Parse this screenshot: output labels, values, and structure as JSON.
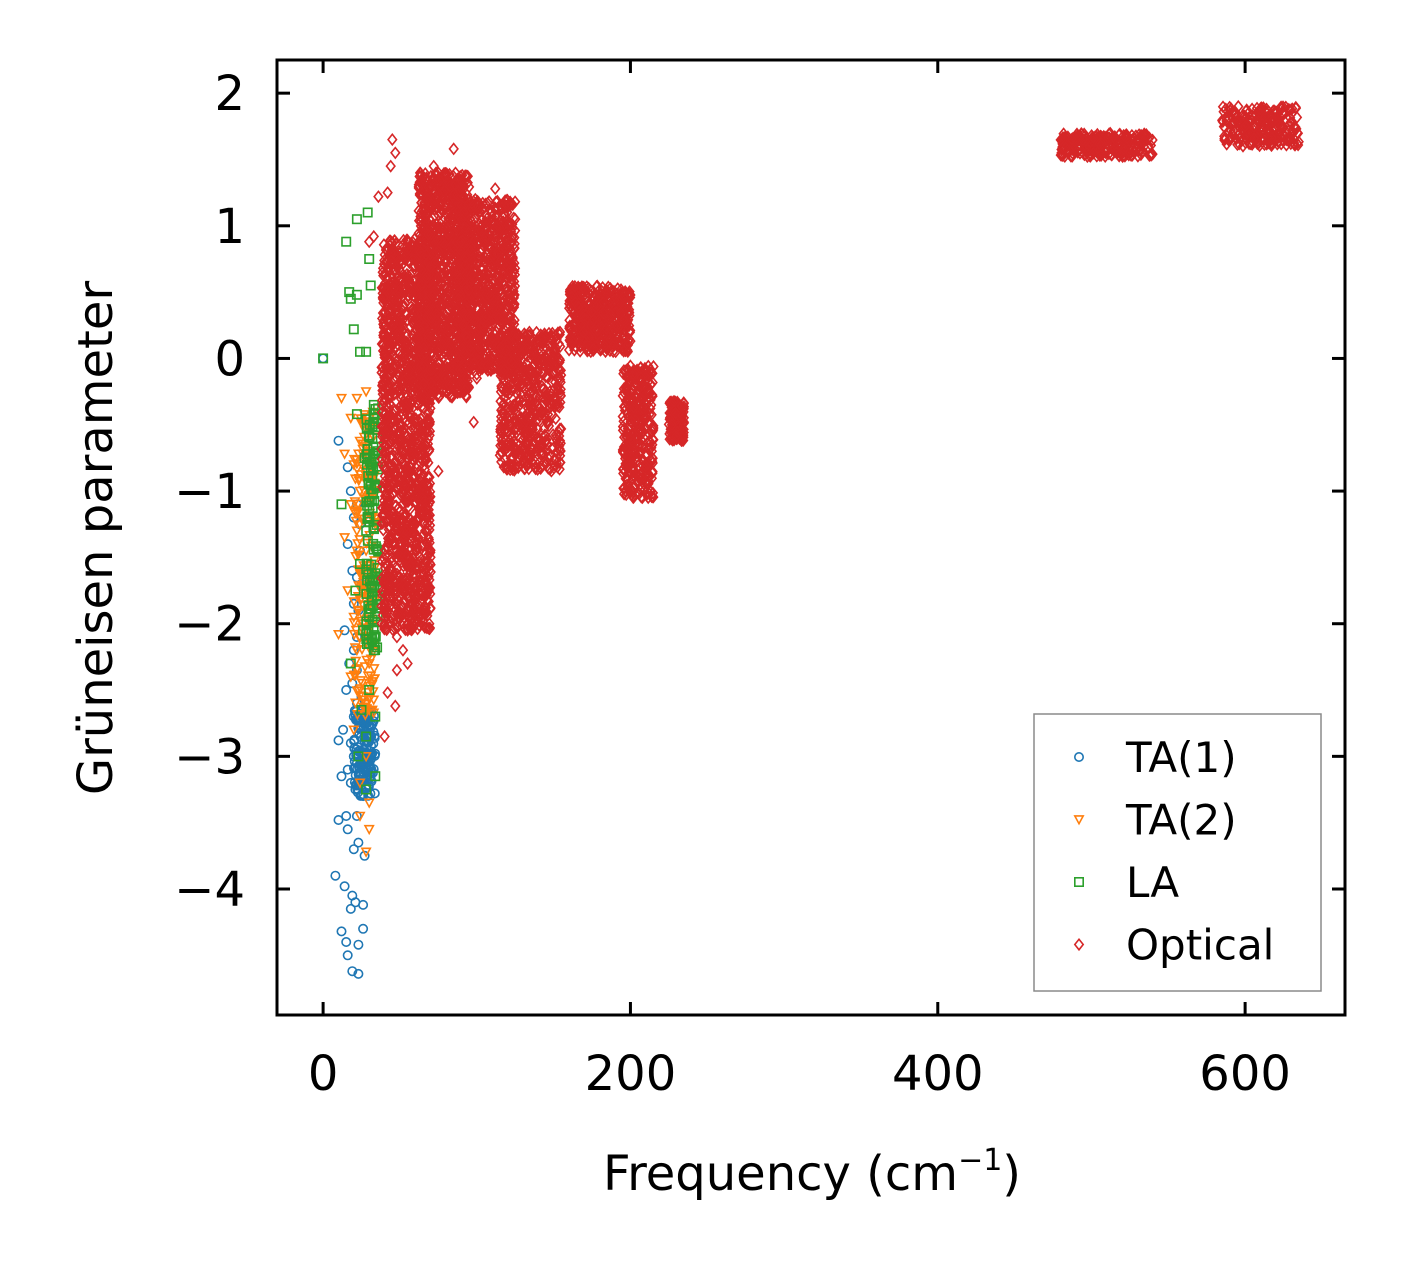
{
  "chart_data": {
    "type": "scatter",
    "title": "",
    "xlabel": "Frequency (cm",
    "xlabel_sup": "−1",
    "xlabel_tail": ")",
    "ylabel": "Grüneisen parameter",
    "xlim": [
      -30,
      665
    ],
    "ylim": [
      -4.95,
      2.25
    ],
    "xticks": [
      0,
      200,
      400,
      600
    ],
    "xtick_labels": [
      "0",
      "200",
      "400",
      "600"
    ],
    "yticks": [
      2,
      1,
      0,
      -1,
      -2,
      -3,
      -4
    ],
    "ytick_labels": [
      "2",
      "1",
      "0",
      "−1",
      "−2",
      "−3",
      "−4"
    ],
    "legend_position": "lower-right",
    "series": [
      {
        "name": "TA(1)",
        "marker": "circle",
        "color": "#1f77b4",
        "points": [
          [
            0,
            0
          ],
          [
            10,
            -0.62
          ],
          [
            16,
            -0.82
          ],
          [
            18,
            -1.0
          ],
          [
            22,
            -1.1
          ],
          [
            20,
            -1.2
          ],
          [
            24,
            -1.25
          ],
          [
            16,
            -1.4
          ],
          [
            24,
            -1.45
          ],
          [
            19,
            -1.6
          ],
          [
            22,
            -1.65
          ],
          [
            25,
            -1.7
          ],
          [
            20,
            -1.85
          ],
          [
            23,
            -1.9
          ],
          [
            14,
            -2.05
          ],
          [
            22,
            -2.1
          ],
          [
            20,
            -2.2
          ],
          [
            17,
            -2.3
          ],
          [
            22,
            -2.35
          ],
          [
            19,
            -2.45
          ],
          [
            15,
            -2.5
          ],
          [
            25,
            -2.55
          ],
          [
            22,
            -2.6
          ],
          [
            20,
            -2.7
          ],
          [
            24,
            -2.72
          ],
          [
            13,
            -2.8
          ],
          [
            10,
            -2.88
          ],
          [
            18,
            -2.9
          ],
          [
            26,
            -2.95
          ],
          [
            20,
            -3.0
          ],
          [
            22,
            -3.05
          ],
          [
            16,
            -3.1
          ],
          [
            12,
            -3.15
          ],
          [
            24,
            -3.15
          ],
          [
            18,
            -3.2
          ],
          [
            21,
            -3.25
          ],
          [
            26,
            -3.3
          ],
          [
            15,
            -3.45
          ],
          [
            22,
            -3.45
          ],
          [
            10,
            -3.48
          ],
          [
            16,
            -3.55
          ],
          [
            23,
            -3.65
          ],
          [
            20,
            -3.7
          ],
          [
            27,
            -3.75
          ],
          [
            8,
            -3.9
          ],
          [
            14,
            -3.98
          ],
          [
            19,
            -4.05
          ],
          [
            21,
            -4.1
          ],
          [
            26,
            -4.12
          ],
          [
            18,
            -4.15
          ],
          [
            12,
            -4.32
          ],
          [
            26,
            -4.3
          ],
          [
            15,
            -4.4
          ],
          [
            23,
            -4.42
          ],
          [
            16,
            -4.5
          ],
          [
            19,
            -4.62
          ],
          [
            23,
            -4.64
          ]
        ],
        "dense_regions": [
          {
            "x": [
              20,
              34
            ],
            "y": [
              -3.3,
              -2.65
            ],
            "n": 160
          }
        ]
      },
      {
        "name": "TA(2)",
        "marker": "triangle-down",
        "color": "#ff7f0e",
        "points": [
          [
            12,
            -0.3
          ],
          [
            22,
            -0.3
          ],
          [
            28,
            -0.25
          ],
          [
            18,
            -0.45
          ],
          [
            26,
            -0.5
          ],
          [
            30,
            -0.55
          ],
          [
            14,
            -0.72
          ],
          [
            20,
            -0.8
          ],
          [
            28,
            -0.85
          ],
          [
            24,
            -1.0
          ],
          [
            18,
            -1.1
          ],
          [
            32,
            -1.05
          ],
          [
            22,
            -1.3
          ],
          [
            14,
            -1.35
          ],
          [
            28,
            -1.45
          ],
          [
            24,
            -1.6
          ],
          [
            16,
            -1.75
          ],
          [
            30,
            -1.8
          ],
          [
            20,
            -1.95
          ],
          [
            26,
            -2.0
          ],
          [
            10,
            -2.08
          ],
          [
            22,
            -2.2
          ],
          [
            30,
            -2.3
          ],
          [
            18,
            -2.4
          ],
          [
            26,
            -2.55
          ],
          [
            32,
            -2.65
          ],
          [
            20,
            -2.8
          ],
          [
            28,
            -3.0
          ],
          [
            24,
            -3.2
          ],
          [
            30,
            -3.35
          ],
          [
            24,
            -3.45
          ],
          [
            30,
            -3.55
          ],
          [
            28,
            -3.72
          ]
        ],
        "dense_regions": [
          {
            "x": [
              20,
              34
            ],
            "y": [
              -2.7,
              -0.4
            ],
            "n": 180
          }
        ]
      },
      {
        "name": "LA",
        "marker": "square",
        "color": "#2ca02c",
        "points": [
          [
            0,
            0
          ],
          [
            22,
            1.05
          ],
          [
            29,
            1.1
          ],
          [
            15,
            0.88
          ],
          [
            30,
            0.75
          ],
          [
            17,
            0.5
          ],
          [
            22,
            0.48
          ],
          [
            31,
            0.55
          ],
          [
            18,
            0.45
          ],
          [
            20,
            0.22
          ],
          [
            24,
            0.05
          ],
          [
            28,
            0.05
          ],
          [
            33,
            -0.35
          ],
          [
            22,
            -0.42
          ],
          [
            30,
            -0.58
          ],
          [
            27,
            -0.75
          ],
          [
            34,
            -0.95
          ],
          [
            12,
            -1.1
          ],
          [
            30,
            -1.2
          ],
          [
            24,
            -1.55
          ],
          [
            34,
            -1.62
          ],
          [
            21,
            -1.75
          ],
          [
            30,
            -1.95
          ],
          [
            26,
            -2.05
          ],
          [
            33,
            -2.2
          ],
          [
            18,
            -2.3
          ],
          [
            30,
            -2.5
          ],
          [
            25,
            -2.65
          ],
          [
            34,
            -2.7
          ],
          [
            28,
            -2.85
          ],
          [
            23,
            -3.0
          ],
          [
            34,
            -3.15
          ],
          [
            28,
            -3.25
          ]
        ],
        "dense_regions": [
          {
            "x": [
              28,
              36
            ],
            "y": [
              -2.2,
              -0.3
            ],
            "n": 120
          }
        ]
      },
      {
        "name": "Optical",
        "marker": "diamond",
        "color": "#d62728",
        "points": [
          [
            45,
            1.65
          ],
          [
            47,
            1.55
          ],
          [
            44,
            1.45
          ],
          [
            85,
            1.58
          ],
          [
            72,
            1.45
          ],
          [
            36,
            1.22
          ],
          [
            42,
            1.25
          ],
          [
            112,
            1.28
          ],
          [
            120,
            1.15
          ],
          [
            125,
            1.05
          ],
          [
            30,
            0.88
          ],
          [
            33,
            0.92
          ],
          [
            140,
            0.1
          ],
          [
            145,
            0.08
          ],
          [
            98,
            -0.48
          ],
          [
            120,
            -0.82
          ],
          [
            138,
            -0.78
          ],
          [
            82,
            -0.2
          ],
          [
            90,
            -0.1
          ],
          [
            100,
            -0.12
          ],
          [
            100,
            -0.15
          ],
          [
            68,
            -0.95
          ],
          [
            58,
            -1.05
          ],
          [
            60,
            -1.85
          ],
          [
            55,
            -2.05
          ],
          [
            48,
            -2.1
          ],
          [
            52,
            -2.2
          ],
          [
            55,
            -2.3
          ],
          [
            48,
            -2.35
          ],
          [
            42,
            -2.52
          ],
          [
            47,
            -2.62
          ],
          [
            40,
            -2.85
          ],
          [
            63,
            -1.15
          ],
          [
            75,
            -0.85
          ]
        ],
        "dense_regions": [
          {
            "x": [
              38,
              70
            ],
            "y": [
              -2.05,
              0.9
            ],
            "n": 1500
          },
          {
            "x": [
              62,
              95
            ],
            "y": [
              -0.3,
              1.4
            ],
            "n": 1100
          },
          {
            "x": [
              88,
              125
            ],
            "y": [
              -0.1,
              1.2
            ],
            "n": 900
          },
          {
            "x": [
              115,
              155
            ],
            "y": [
              -0.85,
              0.2
            ],
            "n": 600
          },
          {
            "x": [
              160,
              200
            ],
            "y": [
              0.05,
              0.55
            ],
            "n": 500
          },
          {
            "x": [
              195,
              215
            ],
            "y": [
              -1.05,
              -0.05
            ],
            "n": 350
          },
          {
            "x": [
              225,
              235
            ],
            "y": [
              -0.62,
              -0.32
            ],
            "n": 140
          },
          {
            "x": [
              480,
              540
            ],
            "y": [
              1.52,
              1.7
            ],
            "n": 250
          },
          {
            "x": [
              585,
              635
            ],
            "y": [
              1.6,
              1.9
            ],
            "n": 250
          }
        ]
      }
    ]
  }
}
